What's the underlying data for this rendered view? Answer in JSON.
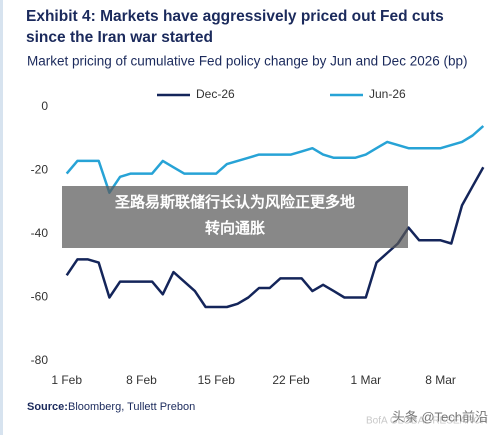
{
  "chart_data": {
    "type": "line",
    "title": "Exhibit 4: Markets have aggressively priced out Fed cuts since the Iran war started",
    "subtitle": "Market pricing of cumulative Fed policy change by Jun and Dec 2026 (bp)",
    "x": [
      1,
      2,
      3,
      4,
      5,
      6,
      7,
      8,
      9,
      10,
      11,
      12,
      13,
      14,
      15,
      16,
      17,
      18,
      19,
      20,
      21,
      22,
      23,
      24,
      25,
      26,
      27,
      28,
      29,
      30,
      31,
      32,
      33,
      34,
      35,
      36,
      37,
      38,
      39,
      40
    ],
    "series": [
      {
        "name": "Dec-26",
        "color": "#14255a",
        "values": [
          -53,
          -48,
          -48,
          -49,
          -60,
          -55,
          -55,
          -55,
          -55,
          -59,
          -52,
          -55,
          -58,
          -63,
          -63,
          -63,
          -62,
          -60,
          -57,
          -57,
          -54,
          -54,
          -54,
          -58,
          -56,
          -58,
          -60,
          -60,
          -60,
          -49,
          -46,
          -43,
          -38,
          -42,
          -42,
          -42,
          -43,
          -31,
          -25,
          -19
        ]
      },
      {
        "name": "Jun-26",
        "color": "#27a3d6",
        "values": [
          -21,
          -17,
          -17,
          -17,
          -27,
          -22,
          -21,
          -21,
          -21,
          -17,
          -19,
          -21,
          -21,
          -21,
          -21,
          -18,
          -17,
          -16,
          -15,
          -15,
          -15,
          -15,
          -14,
          -13,
          -15,
          -16,
          -16,
          -16,
          -15,
          -13,
          -11,
          -12,
          -13,
          -13,
          -13,
          -13,
          -12,
          -11,
          -9,
          -6
        ]
      }
    ],
    "xlim": [
      0,
      41
    ],
    "xticks": [
      {
        "value": 1,
        "label": "1 Feb"
      },
      {
        "value": 8,
        "label": "8 Feb"
      },
      {
        "value": 15,
        "label": "15 Feb"
      },
      {
        "value": 22,
        "label": "22 Feb"
      },
      {
        "value": 29,
        "label": "1 Mar"
      },
      {
        "value": 36,
        "label": "8 Mar"
      }
    ],
    "ylim": [
      -84,
      2
    ],
    "yticks": [
      0,
      -20,
      -40,
      -60,
      -80
    ],
    "grid": false,
    "source_label": "Source:",
    "source": "Bloomberg, Tullett Prebon",
    "branding": "BofA GLOBAL RESEARCH"
  },
  "overlay_text": [
    "圣路易斯联储行长认为风险正更多地",
    "转向通胀"
  ],
  "watermark": "头条 @Tech前沿"
}
